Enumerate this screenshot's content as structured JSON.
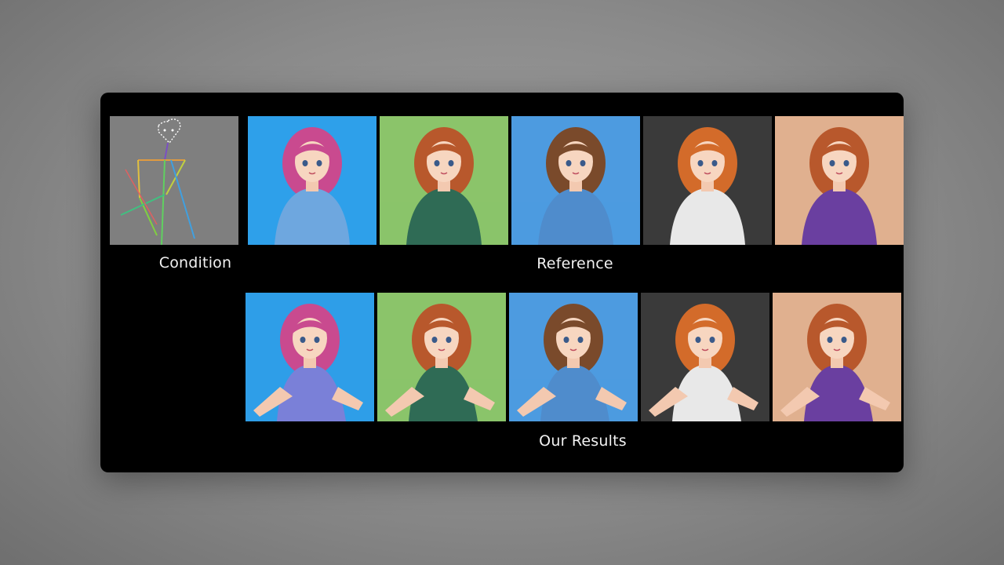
{
  "labels": {
    "condition": "Condition",
    "reference": "Reference",
    "results": "Our Results"
  },
  "reference_images": [
    {
      "icon": "girl-blue-pink-hair-sweater-image",
      "bg": "#2ea0ea",
      "hair": "#c94a8f",
      "cloth": "#6ea7df"
    },
    {
      "icon": "fox-girl-green-dress-field-image",
      "bg": "#8bc46a",
      "hair": "#b8582c",
      "cloth": "#2f6b55"
    },
    {
      "icon": "girl-brown-hair-blue-top-sky-image",
      "bg": "#4d9be0",
      "hair": "#7a4a2b",
      "cloth": "#4f8ccc"
    },
    {
      "icon": "girl-orange-hair-white-top-image",
      "bg": "#3a3a3a",
      "hair": "#d36b2a",
      "cloth": "#e8e8e8"
    },
    {
      "icon": "fox-girl-purple-top-image",
      "bg": "#e0b08f",
      "hair": "#b8582c",
      "cloth": "#6a3fa0"
    }
  ],
  "result_images": [
    {
      "icon": "result-blue-pink-hair-pose-image",
      "bg": "#2e9ee8",
      "hair": "#c94a8f",
      "cloth": "#7a80d8"
    },
    {
      "icon": "result-green-dress-pose-image",
      "bg": "#8bc46a",
      "hair": "#b8582c",
      "cloth": "#2f6b55"
    },
    {
      "icon": "result-blue-top-pose-image",
      "bg": "#4d9be0",
      "hair": "#7a4a2b",
      "cloth": "#4f8ccc"
    },
    {
      "icon": "result-white-top-pose-image",
      "bg": "#3a3a3a",
      "hair": "#d36b2a",
      "cloth": "#e8e8e8"
    },
    {
      "icon": "result-purple-top-pose-image",
      "bg": "#e0b08f",
      "hair": "#b8582c",
      "cloth": "#6a3fa0"
    }
  ]
}
